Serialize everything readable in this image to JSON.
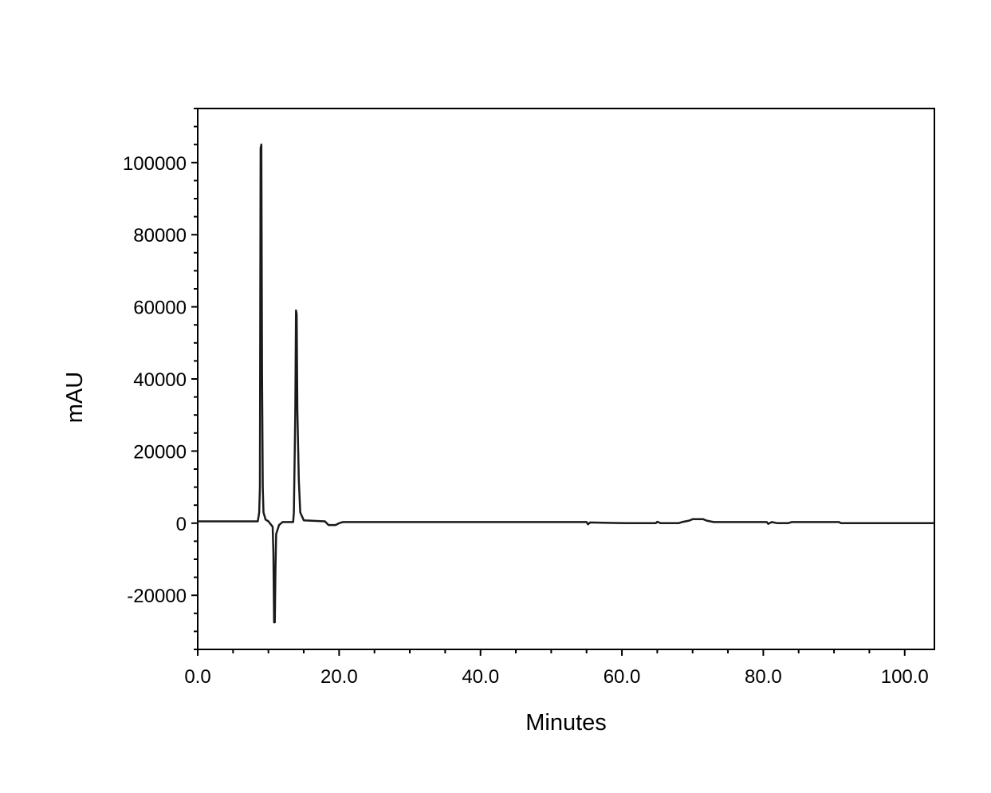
{
  "chart_data": {
    "type": "line",
    "title": "",
    "xlabel": "Minutes",
    "ylabel": "mAU",
    "xlim": [
      0,
      104.2
    ],
    "ylim": [
      -35000,
      115000
    ],
    "x_ticks": [
      0,
      20,
      40,
      60,
      80,
      100
    ],
    "x_tick_labels": [
      "0.0",
      "20.0",
      "40.0",
      "60.0",
      "80.0",
      "100.0"
    ],
    "x_minor_step": 5,
    "y_ticks": [
      -20000,
      0,
      20000,
      40000,
      60000,
      80000,
      100000
    ],
    "y_tick_labels": [
      "-20000",
      "0",
      "20000",
      "40000",
      "60000",
      "80000",
      "100000"
    ],
    "y_minor_step": 5000,
    "grid": false,
    "line_color": "#1a1a1a",
    "series": [
      {
        "points": [
          [
            0,
            500
          ],
          [
            8.5,
            500
          ],
          [
            8.7,
            3000
          ],
          [
            8.8,
            10000
          ],
          [
            8.9,
            104000
          ],
          [
            9.0,
            105000
          ],
          [
            9.1,
            41000
          ],
          [
            9.2,
            10000
          ],
          [
            9.3,
            3000
          ],
          [
            9.6,
            1000
          ],
          [
            10.0,
            500
          ],
          [
            10.6,
            -1000
          ],
          [
            10.7,
            -8000
          ],
          [
            10.8,
            -27500
          ],
          [
            10.9,
            -27500
          ],
          [
            11.0,
            -13000
          ],
          [
            11.1,
            -3000
          ],
          [
            11.5,
            -500
          ],
          [
            12.0,
            300
          ],
          [
            13.5,
            300
          ],
          [
            13.6,
            3000
          ],
          [
            13.8,
            31000
          ],
          [
            13.9,
            59000
          ],
          [
            14.0,
            58000
          ],
          [
            14.1,
            31000
          ],
          [
            14.3,
            12000
          ],
          [
            14.5,
            3000
          ],
          [
            15,
            800
          ],
          [
            18,
            500
          ],
          [
            18.5,
            -500
          ],
          [
            19.5,
            -500
          ],
          [
            20,
            0
          ],
          [
            20.5,
            300
          ],
          [
            55,
            300
          ],
          [
            55.2,
            -300
          ],
          [
            55.5,
            200
          ],
          [
            60.5,
            0
          ],
          [
            62,
            0
          ],
          [
            64.8,
            0
          ],
          [
            65,
            400
          ],
          [
            65.5,
            0
          ],
          [
            68,
            0
          ],
          [
            68.5,
            300
          ],
          [
            69.5,
            700
          ],
          [
            70,
            1100
          ],
          [
            71.5,
            1100
          ],
          [
            72,
            700
          ],
          [
            73,
            300
          ],
          [
            80.5,
            300
          ],
          [
            80.7,
            -200
          ],
          [
            81.2,
            300
          ],
          [
            82,
            0
          ],
          [
            83.5,
            0
          ],
          [
            84,
            300
          ],
          [
            90.7,
            300
          ],
          [
            91,
            0
          ],
          [
            104.2,
            0
          ]
        ]
      }
    ]
  }
}
